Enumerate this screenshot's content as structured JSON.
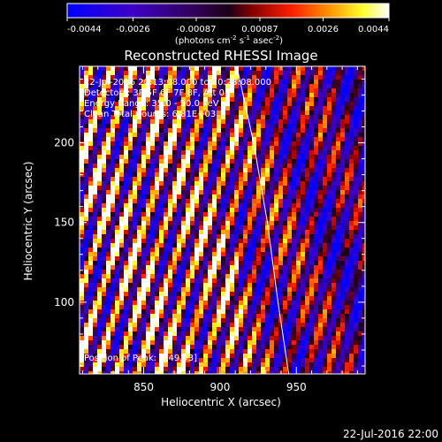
{
  "colorbar": {
    "ticks": [
      "-0.0044",
      "-0.0026",
      "-0.00087",
      "0.00087",
      "0.0026",
      "0.0044"
    ],
    "tick_values": [
      -0.0044,
      -0.0026,
      -0.00087,
      0.00087,
      0.0026,
      0.0044
    ],
    "unit_prefix": "(photons cm",
    "unit_exp1": "-2",
    "unit_mid1": " s",
    "unit_exp2": "-1",
    "unit_mid2": " asec",
    "unit_exp3": "-2",
    "unit_suffix": ")",
    "range": [
      -0.0044,
      0.0044
    ]
  },
  "title": "Reconstructed RHESSI Image",
  "annotations": [
    "22-Jul-2016 20:13:08.000 to 20:23:08.000",
    "Detectors: 3F 5F 6F 7F 8F, Att 0",
    "Energy Range: 35.0 - 50.0 keV",
    "Clean   Total Counts: 6.81E+03"
  ],
  "peak_label": "Position of Peak: [849,93]",
  "timestamp": "22-Jul-2016 22:00",
  "chart_data": {
    "type": "heatmap",
    "xlabel": "Heliocentric X (arcsec)",
    "ylabel": "Heliocentric Y (arcsec)",
    "xlim": [
      808,
      995
    ],
    "ylim": [
      55,
      248
    ],
    "x_ticks": [
      850,
      900,
      950
    ],
    "y_ticks": [
      100,
      150,
      200
    ],
    "value_range": [
      -0.0044,
      0.0044
    ],
    "limb_curve": {
      "x": [
        911,
        922,
        931,
        938,
        945
      ],
      "y": [
        248,
        200,
        150,
        100,
        55
      ]
    },
    "colors": {
      "low": "#0000ff",
      "mid": "#000000",
      "high": "#ffffff",
      "limb": "#ffffff"
    }
  }
}
